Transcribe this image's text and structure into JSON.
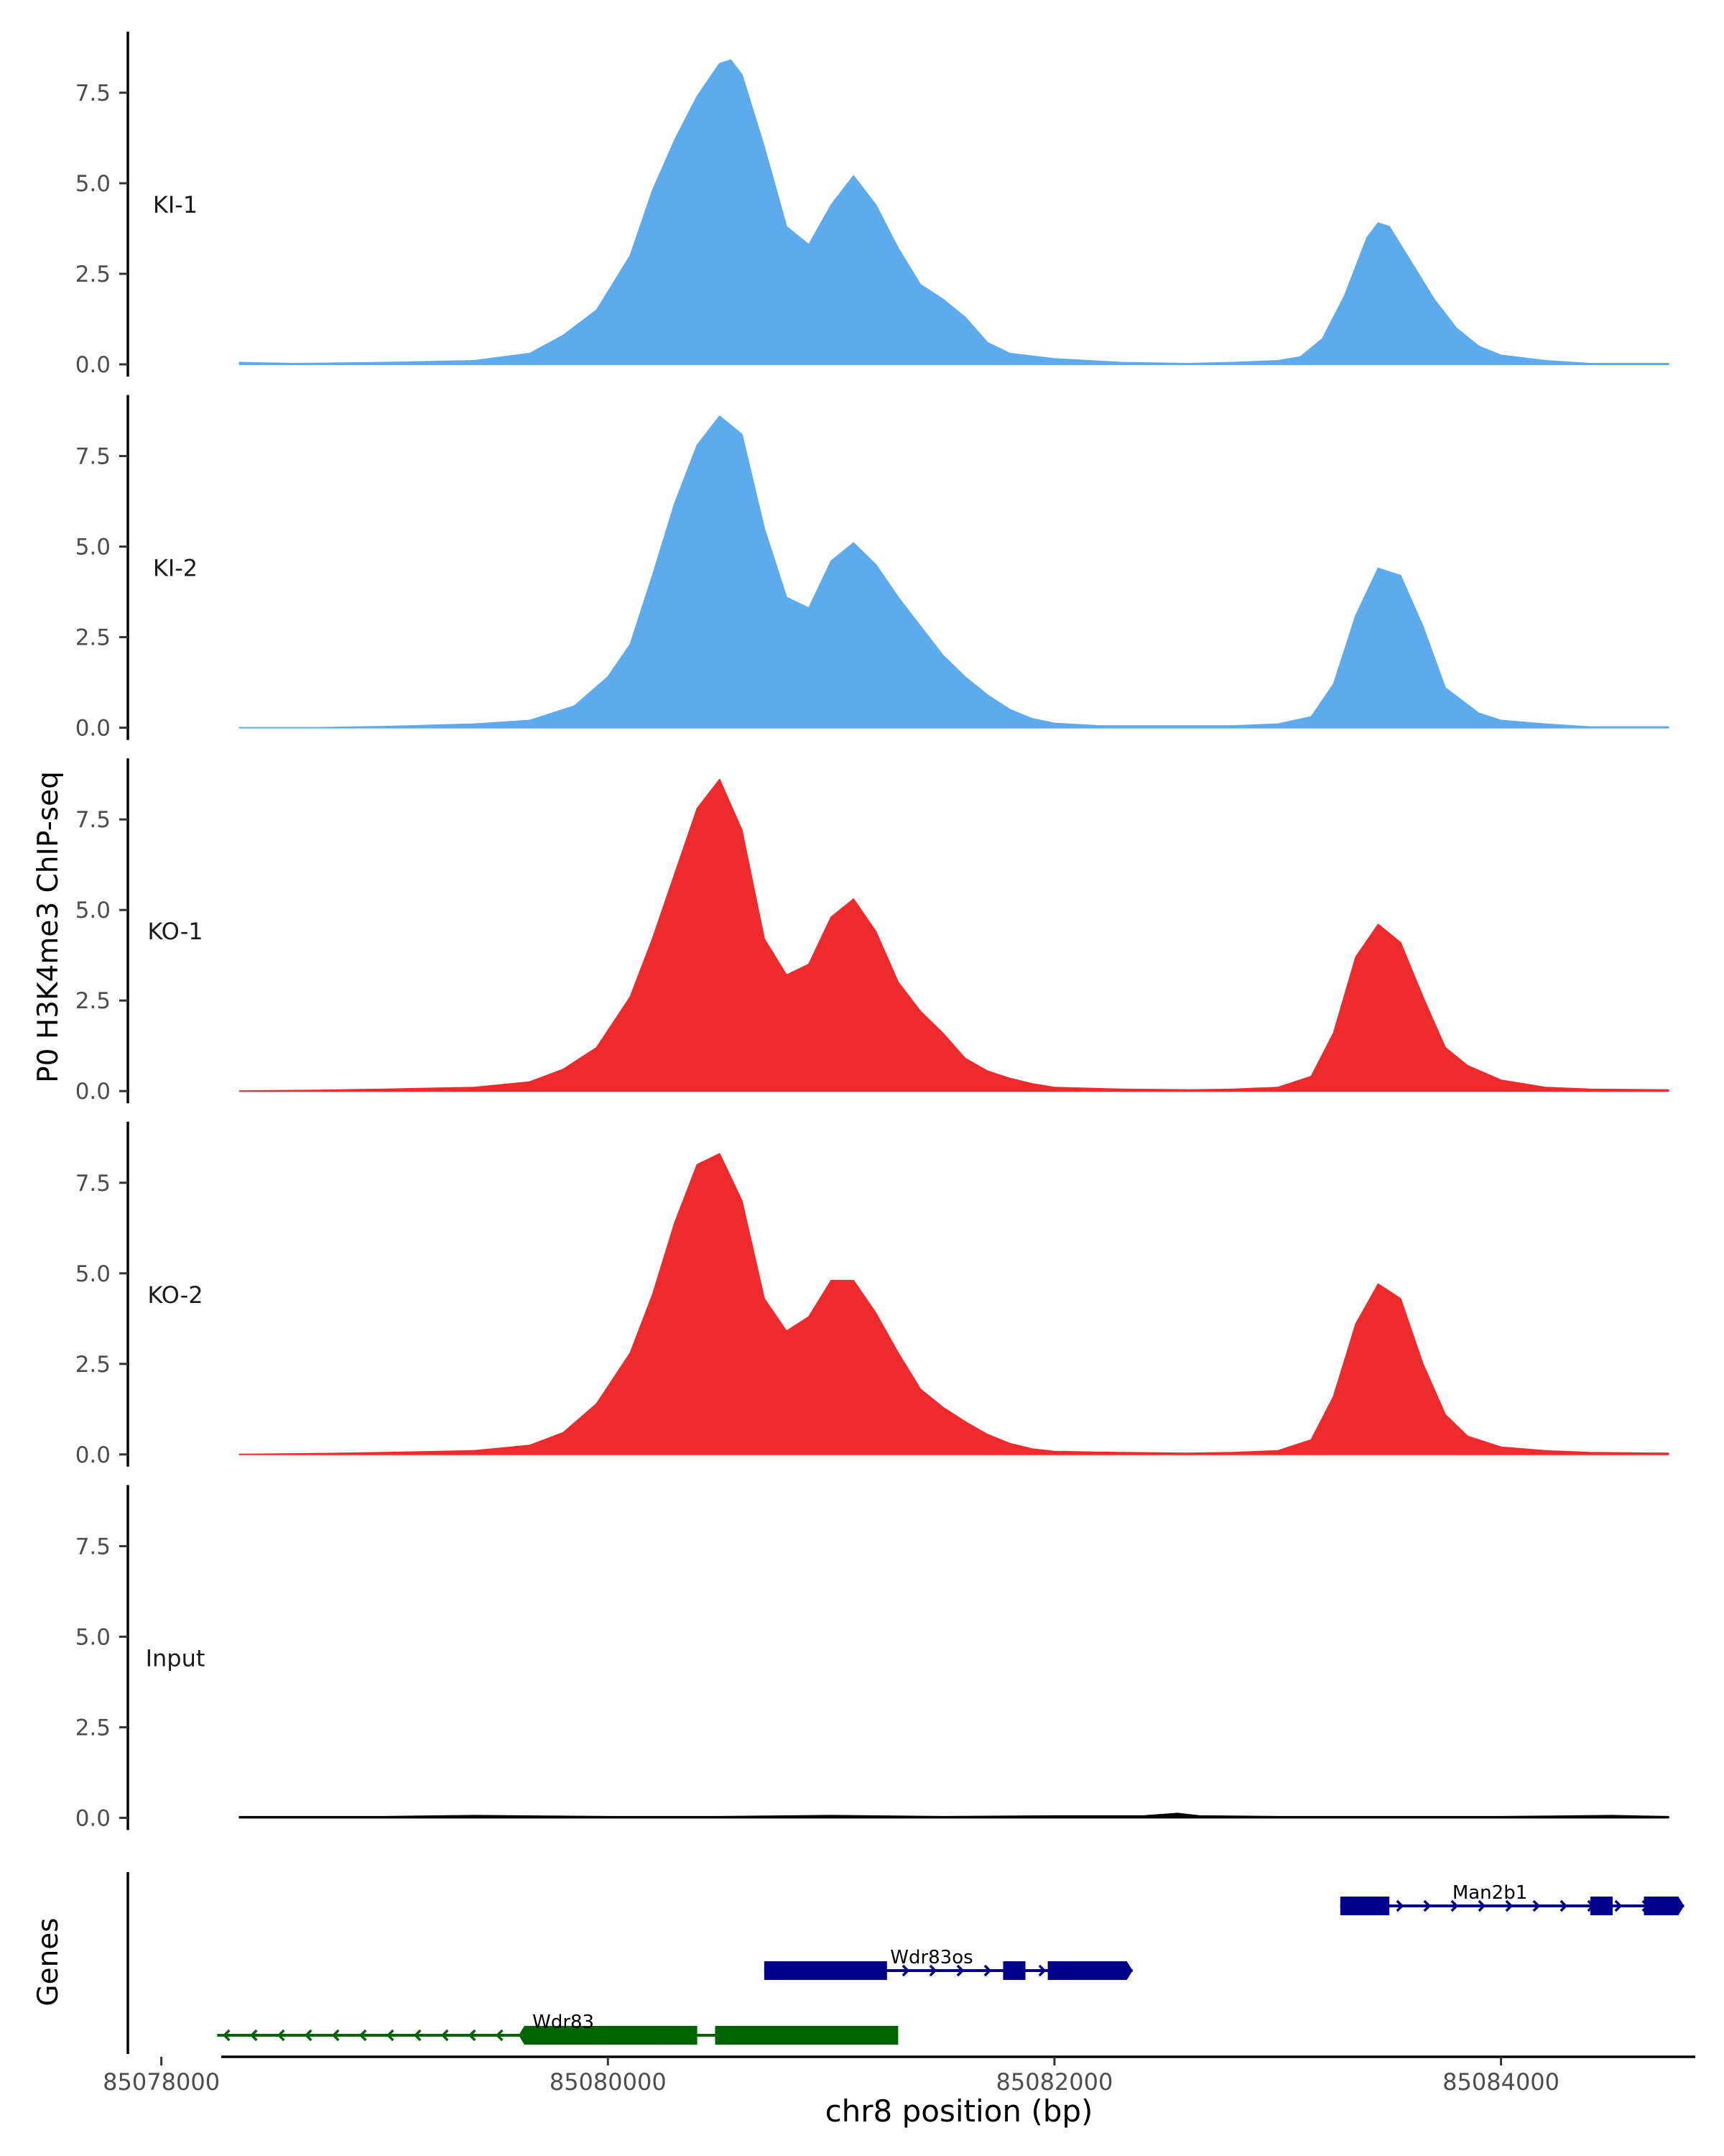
{
  "chart_data": {
    "type": "area",
    "ylabel": "P0 H3K4me3 ChIP-seq",
    "xlabel": "chr8 position (bp)",
    "genes_label": "Genes",
    "xlim": [
      85077850,
      85084870
    ],
    "x_ticks": [
      85078000,
      85080000,
      85082000,
      85084000
    ],
    "x_tick_labels": [
      "85078000",
      "85080000",
      "85082000",
      "85084000"
    ],
    "ylim": [
      0,
      9.2
    ],
    "y_ticks": [
      0,
      2.5,
      5,
      7.5
    ],
    "y_tick_labels": [
      "0.0",
      "2.5",
      "5.0",
      "7.5"
    ],
    "colors": {
      "KI": "#5dabec",
      "KO": "#ee2b2c",
      "Input": "#000000",
      "plus_strand": "#00008b",
      "minus_strand": "#006400"
    },
    "tracks": [
      {
        "name": "KI-1",
        "color": "#5dabec",
        "x": [
          85078350,
          85078600,
          85079000,
          85079400,
          85079650,
          85079800,
          85079950,
          85080100,
          85080200,
          85080300,
          85080400,
          85080500,
          85080550,
          85080600,
          85080700,
          85080800,
          85080900,
          85081000,
          85081100,
          85081200,
          85081300,
          85081400,
          85081500,
          85081600,
          85081700,
          85081800,
          85082000,
          85082300,
          85082600,
          85082800,
          85083000,
          85083100,
          85083200,
          85083300,
          85083400,
          85083450,
          85083500,
          85083600,
          85083700,
          85083800,
          85083900,
          85084000,
          85084200,
          85084400,
          85084750
        ],
        "y": [
          0.05,
          0.02,
          0.05,
          0.1,
          0.3,
          0.8,
          1.5,
          3.0,
          4.8,
          6.2,
          7.4,
          8.3,
          8.4,
          8.0,
          6.0,
          3.8,
          3.3,
          4.4,
          5.2,
          4.4,
          3.2,
          2.2,
          1.8,
          1.3,
          0.6,
          0.3,
          0.15,
          0.05,
          0.02,
          0.05,
          0.1,
          0.2,
          0.7,
          1.9,
          3.5,
          3.9,
          3.8,
          2.8,
          1.8,
          1.0,
          0.5,
          0.25,
          0.1,
          0.02,
          0.02
        ]
      },
      {
        "name": "KI-2",
        "color": "#5dabec",
        "x": [
          85078350,
          85078700,
          85079000,
          85079400,
          85079650,
          85079850,
          85080000,
          85080100,
          85080200,
          85080300,
          85080400,
          85080500,
          85080600,
          85080700,
          85080800,
          85080900,
          85081000,
          85081100,
          85081200,
          85081300,
          85081400,
          85081500,
          85081600,
          85081700,
          85081800,
          85081900,
          85082000,
          85082200,
          85082600,
          85082800,
          85083000,
          85083150,
          85083250,
          85083350,
          85083450,
          85083550,
          85083650,
          85083750,
          85083900,
          85084000,
          85084200,
          85084400,
          85084750
        ],
        "y": [
          0.0,
          0.0,
          0.03,
          0.1,
          0.2,
          0.6,
          1.4,
          2.3,
          4.2,
          6.2,
          7.8,
          8.6,
          8.1,
          5.5,
          3.6,
          3.3,
          4.6,
          5.1,
          4.5,
          3.6,
          2.8,
          2.0,
          1.4,
          0.9,
          0.5,
          0.25,
          0.12,
          0.05,
          0.05,
          0.05,
          0.1,
          0.3,
          1.2,
          3.1,
          4.4,
          4.2,
          2.8,
          1.1,
          0.4,
          0.2,
          0.1,
          0.02,
          0.02
        ]
      },
      {
        "name": "KO-1",
        "color": "#ee2b2c",
        "x": [
          85078350,
          85078700,
          85079000,
          85079400,
          85079650,
          85079800,
          85079950,
          85080100,
          85080200,
          85080300,
          85080400,
          85080500,
          85080600,
          85080700,
          85080800,
          85080900,
          85081000,
          85081100,
          85081200,
          85081300,
          85081400,
          85081500,
          85081600,
          85081700,
          85081800,
          85081900,
          85082000,
          85082300,
          85082600,
          85082800,
          85083000,
          85083150,
          85083250,
          85083350,
          85083450,
          85083550,
          85083650,
          85083750,
          85083850,
          85084000,
          85084200,
          85084400,
          85084750
        ],
        "y": [
          0.0,
          0.02,
          0.05,
          0.1,
          0.25,
          0.6,
          1.2,
          2.6,
          4.2,
          6.0,
          7.8,
          8.6,
          7.2,
          4.2,
          3.2,
          3.5,
          4.8,
          5.3,
          4.4,
          3.0,
          2.2,
          1.6,
          0.9,
          0.55,
          0.35,
          0.2,
          0.1,
          0.05,
          0.03,
          0.05,
          0.1,
          0.4,
          1.6,
          3.7,
          4.6,
          4.1,
          2.6,
          1.2,
          0.7,
          0.3,
          0.1,
          0.05,
          0.03
        ]
      },
      {
        "name": "KO-2",
        "color": "#ee2b2c",
        "x": [
          85078350,
          85078700,
          85079000,
          85079400,
          85079650,
          85079800,
          85079950,
          85080100,
          85080200,
          85080300,
          85080400,
          85080500,
          85080600,
          85080700,
          85080800,
          85080900,
          85081000,
          85081100,
          85081200,
          85081300,
          85081400,
          85081500,
          85081600,
          85081700,
          85081800,
          85081900,
          85082000,
          85082300,
          85082600,
          85082800,
          85083000,
          85083150,
          85083250,
          85083350,
          85083450,
          85083550,
          85083650,
          85083750,
          85083850,
          85084000,
          85084200,
          85084400,
          85084750
        ],
        "y": [
          0.0,
          0.02,
          0.05,
          0.1,
          0.25,
          0.6,
          1.4,
          2.8,
          4.4,
          6.4,
          8.0,
          8.3,
          7.0,
          4.3,
          3.4,
          3.8,
          4.8,
          4.8,
          3.9,
          2.8,
          1.8,
          1.3,
          0.9,
          0.55,
          0.3,
          0.15,
          0.08,
          0.05,
          0.03,
          0.05,
          0.1,
          0.4,
          1.6,
          3.6,
          4.7,
          4.3,
          2.5,
          1.1,
          0.5,
          0.2,
          0.1,
          0.05,
          0.03
        ]
      },
      {
        "name": "Input",
        "color": "#000000",
        "x": [
          85078350,
          85079000,
          85079400,
          85080000,
          85080500,
          85081000,
          85081500,
          85082000,
          85082400,
          85082550,
          85082650,
          85083000,
          85083600,
          85084000,
          85084500,
          85084750
        ],
        "y": [
          0.03,
          0.03,
          0.06,
          0.03,
          0.03,
          0.06,
          0.03,
          0.05,
          0.05,
          0.12,
          0.05,
          0.03,
          0.03,
          0.03,
          0.06,
          0.03
        ]
      }
    ],
    "genes": [
      {
        "name": "Man2b1",
        "strand": "+",
        "color": "#00008b",
        "row": 0,
        "start": 85083280,
        "end": 85084820,
        "label_x": 85083950,
        "exons": [
          [
            85083280,
            85083500
          ],
          [
            85084400,
            85084500
          ],
          [
            85084640,
            85084820
          ]
        ]
      },
      {
        "name": "Wdr83os",
        "strand": "+",
        "color": "#00008b",
        "row": 1,
        "start": 85080700,
        "end": 85082350,
        "label_x": 85081450,
        "exons": [
          [
            85080700,
            85081250
          ],
          [
            85081770,
            85081870
          ],
          [
            85081970,
            85082350
          ]
        ]
      },
      {
        "name": "Wdr83",
        "strand": "-",
        "color": "#006400",
        "row": 2,
        "start": 85078250,
        "end": 85081300,
        "label_x": 85079800,
        "exons": [
          [
            85079600,
            85080250
          ],
          [
            85080250,
            85080400
          ],
          [
            85080480,
            85081300
          ]
        ]
      }
    ]
  }
}
